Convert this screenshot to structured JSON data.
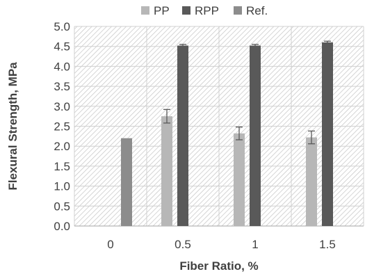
{
  "chart_data": {
    "type": "bar",
    "categories": [
      "0",
      "0.5",
      "1",
      "1.5"
    ],
    "series": [
      {
        "name": "PP",
        "values": [
          null,
          2.75,
          2.32,
          2.22
        ],
        "errors": [
          null,
          0.17,
          0.16,
          0.16
        ],
        "color": "#b7b7b7"
      },
      {
        "name": "RPP",
        "values": [
          null,
          4.52,
          4.52,
          4.6
        ],
        "errors": [
          null,
          0.03,
          0.03,
          0.03
        ],
        "color": "#595959"
      },
      {
        "name": "Ref.",
        "values": [
          2.2,
          null,
          null,
          null
        ],
        "errors": [
          null,
          null,
          null,
          null
        ],
        "color": "#8c8c8c"
      }
    ],
    "xlabel": "Fiber Ratio, %",
    "ylabel": "Flexural Strength, MPa",
    "ylim": [
      0,
      5
    ],
    "yticks": [
      "0.0",
      "0.5",
      "1.0",
      "1.5",
      "2.0",
      "2.5",
      "3.0",
      "3.5",
      "4.0",
      "4.5",
      "5.0"
    ],
    "grid": true,
    "plot_area_pattern": "diagonal-hatch",
    "legend_position": "top"
  }
}
